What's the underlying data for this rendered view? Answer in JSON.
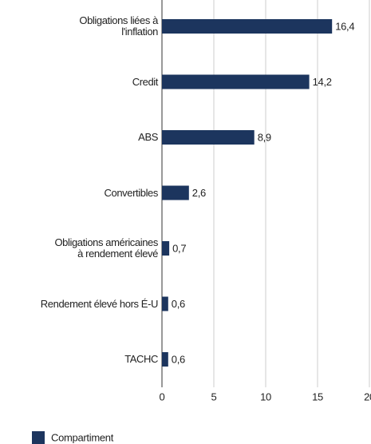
{
  "chart_data": {
    "type": "barh",
    "categories": [
      "Obligations liées à\nl'inflation",
      "Credit",
      "ABS",
      "Convertibles",
      "Obligations américaines\nà rendement élevé",
      "Rendement élevé hors É-U",
      "TACHC"
    ],
    "series": [
      {
        "name": "Compartiment",
        "color": "#1c355e",
        "values": [
          16.4,
          14.2,
          8.9,
          2.6,
          0.7,
          0.6,
          0.6
        ],
        "value_labels": [
          "16,4",
          "14,2",
          "8,9",
          "2,6",
          "0,7",
          "0,6",
          "0,6"
        ]
      }
    ],
    "xlim": [
      0,
      20
    ],
    "xticks": [
      0,
      5,
      10,
      15,
      20
    ],
    "grid": true,
    "legend": "bottom-left"
  }
}
